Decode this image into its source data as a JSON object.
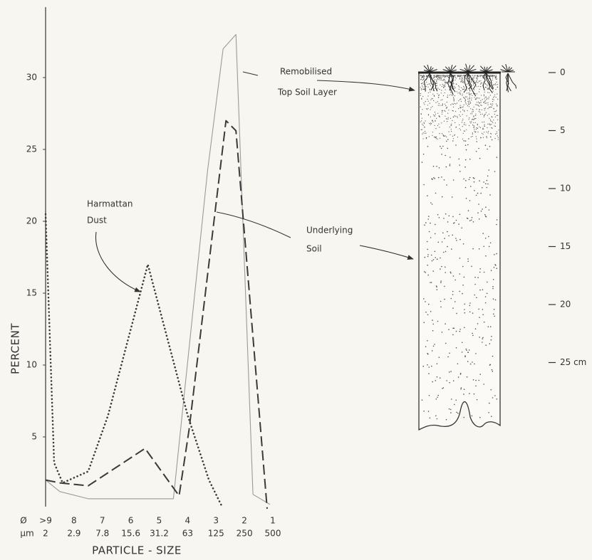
{
  "chart_data": {
    "type": "line",
    "y_label": "PERCENT",
    "x_label": "PARTICLE - SIZE",
    "xtick_prefix": "Ø",
    "x2tick_prefix": "µm",
    "xlim": [
      9,
      1
    ],
    "ylim": [
      0,
      35
    ],
    "xticks": [
      {
        "value": 9,
        "label": ">9"
      },
      8,
      7,
      6,
      5,
      4,
      3,
      2,
      1
    ],
    "x2ticks": [
      {
        "value": 9,
        "label": "2"
      },
      {
        "value": 8,
        "label": "2.9"
      },
      {
        "value": 7,
        "label": "7.8"
      },
      {
        "value": 6,
        "label": "15.6"
      },
      {
        "value": 5,
        "label": "31.2"
      },
      {
        "value": 4,
        "label": "63"
      },
      {
        "value": 3,
        "label": "125"
      },
      {
        "value": 2,
        "label": "250"
      },
      {
        "value": 1,
        "label": "500"
      }
    ],
    "yticks": [
      5,
      10,
      15,
      20,
      25,
      30
    ],
    "series": [
      {
        "style": "solid",
        "color": "#9a9a9a",
        "x": [
          9,
          8.5,
          7.5,
          6.5,
          5.5,
          4.5,
          3.3,
          2.75,
          2.3,
          1.7,
          1.1
        ],
        "values": [
          2.0,
          1.2,
          0.7,
          0.7,
          0.7,
          0.7,
          23.5,
          32,
          33,
          1,
          0.3
        ]
      },
      {
        "style": "dashed",
        "color": "#3a3a3a",
        "x": [
          9,
          8.5,
          7.5,
          5.5,
          4.3,
          3.95,
          2.65,
          2.3,
          1.2
        ],
        "values": [
          2,
          1.8,
          1.6,
          4.2,
          0.9,
          5.5,
          27,
          26.3,
          0
        ]
      },
      {
        "style": "dotted",
        "color": "#3a3a3a",
        "x": [
          9,
          8.7,
          8.4,
          7.5,
          6.8,
          5.4,
          4.0,
          3.25,
          2.8
        ],
        "values": [
          20.5,
          3.2,
          1.8,
          2.6,
          6.5,
          17,
          6.5,
          2,
          0.2
        ]
      }
    ],
    "annotations": [
      {
        "lines": [
          "Harmattan",
          "Dust"
        ]
      },
      {
        "lines": [
          "Remobilised",
          "Top Soil Layer"
        ]
      },
      {
        "lines": [
          "Underlying",
          "Soil"
        ]
      }
    ],
    "depth_axis": {
      "lim": [
        0,
        30
      ],
      "ticks": [
        0,
        5,
        10,
        15,
        20,
        {
          "value": 25,
          "label": "25 cm"
        }
      ]
    }
  }
}
